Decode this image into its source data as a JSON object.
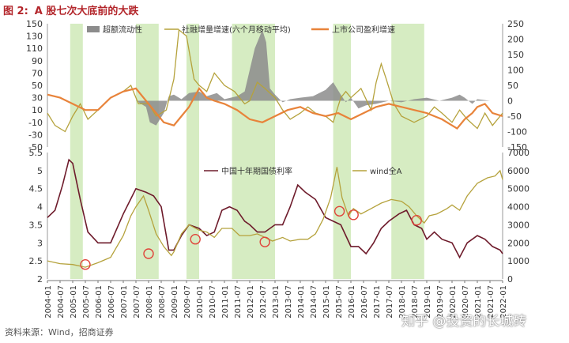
{
  "page": {
    "title_num": "图 2:",
    "title_text": "A 股七次大底前的大跌",
    "source": "资料来源：Wind，招商证券",
    "watermark": "知乎 @投资的长城砖"
  },
  "colors": {
    "excess_liquidity": "#8c8c8c",
    "social_financing": "#b5a23c",
    "profit_growth": "#e8833a",
    "bond_yield": "#6e1b2b",
    "wind_a": "#b5a23c",
    "band": "#d6ecc2",
    "circle": "#e0443a"
  },
  "chart_data": [
    {
      "type": "line",
      "panel": "top",
      "series": [
        {
          "name": "超额流动性",
          "kind": "area",
          "axis": "right",
          "x": [
            2004.0,
            2005.0,
            2006.0,
            2007.5,
            2007.9,
            2008.05,
            2008.3,
            2008.6,
            2008.8,
            2009.0,
            2009.3,
            2009.6,
            2010.0,
            2010.3,
            2010.7,
            2011.0,
            2011.5,
            2011.8,
            2012.0,
            2012.2,
            2012.5,
            2012.65,
            2012.8,
            2013.0,
            2013.3,
            2013.6,
            2014.0,
            2014.5,
            2015.0,
            2015.3,
            2015.6,
            2015.8,
            2016.0,
            2016.3,
            2016.6,
            2017.0,
            2017.5,
            2018.0,
            2018.5,
            2019.0,
            2019.5,
            2020.0,
            2020.3,
            2020.5,
            2020.8,
            2021.0,
            2021.5,
            2022.0
          ],
          "y": [
            0,
            0,
            0,
            0,
            -20,
            -70,
            -80,
            -40,
            15,
            20,
            5,
            25,
            30,
            15,
            25,
            5,
            15,
            30,
            100,
            170,
            230,
            190,
            40,
            20,
            -5,
            5,
            10,
            15,
            35,
            60,
            20,
            -5,
            10,
            -25,
            -15,
            -10,
            0,
            -5,
            5,
            10,
            0,
            10,
            20,
            10,
            -10,
            5,
            0,
            0
          ]
        },
        {
          "name": "社融增量增速(六个月移动平均)",
          "kind": "line",
          "axis": "left",
          "x": [
            2004.0,
            2004.3,
            2004.7,
            2005.0,
            2005.3,
            2005.6,
            2006.0,
            2006.5,
            2007.0,
            2007.3,
            2007.6,
            2008.0,
            2008.3,
            2008.7,
            2009.0,
            2009.2,
            2009.5,
            2009.8,
            2010.0,
            2010.3,
            2010.6,
            2011.0,
            2011.4,
            2011.8,
            2012.0,
            2012.3,
            2012.6,
            2013.0,
            2013.3,
            2013.6,
            2014.0,
            2014.3,
            2014.6,
            2015.0,
            2015.3,
            2015.6,
            2015.8,
            2016.0,
            2016.4,
            2016.8,
            2017.0,
            2017.2,
            2017.4,
            2017.7,
            2018.0,
            2018.5,
            2019.0,
            2019.3,
            2019.6,
            2020.0,
            2020.3,
            2020.6,
            2021.0,
            2021.3,
            2021.6,
            2022.0
          ],
          "y": [
            5,
            -15,
            -25,
            0,
            20,
            -5,
            10,
            30,
            40,
            50,
            20,
            20,
            0,
            10,
            60,
            140,
            130,
            60,
            50,
            40,
            70,
            50,
            40,
            20,
            25,
            55,
            45,
            30,
            10,
            -5,
            5,
            15,
            5,
            0,
            -10,
            30,
            40,
            30,
            45,
            10,
            55,
            85,
            60,
            20,
            0,
            -10,
            0,
            15,
            5,
            -10,
            10,
            -5,
            -20,
            5,
            -15,
            5
          ]
        },
        {
          "name": "上市公司盈利增速",
          "kind": "line",
          "axis": "left",
          "x": [
            2004.0,
            2004.5,
            2005.0,
            2005.5,
            2006.0,
            2006.5,
            2007.0,
            2007.5,
            2008.0,
            2008.3,
            2008.6,
            2009.0,
            2009.3,
            2009.6,
            2010.0,
            2010.3,
            2010.6,
            2011.0,
            2011.5,
            2012.0,
            2012.5,
            2013.0,
            2013.5,
            2014.0,
            2014.5,
            2015.0,
            2015.5,
            2016.0,
            2016.5,
            2017.0,
            2017.5,
            2018.0,
            2018.5,
            2019.0,
            2019.3,
            2019.6,
            2020.0,
            2020.2,
            2020.5,
            2020.8,
            2021.0,
            2021.3,
            2021.6,
            2022.0
          ],
          "y": [
            35,
            30,
            20,
            10,
            10,
            30,
            40,
            45,
            20,
            5,
            -10,
            -15,
            0,
            15,
            45,
            30,
            25,
            20,
            10,
            -5,
            -10,
            0,
            10,
            15,
            5,
            0,
            5,
            -5,
            5,
            15,
            20,
            15,
            10,
            5,
            0,
            -5,
            -15,
            -20,
            -5,
            5,
            15,
            20,
            5,
            0
          ]
        }
      ],
      "left_axis": {
        "ylim": [
          -50,
          150
        ],
        "ticks": [
          -50,
          -30,
          -10,
          10,
          30,
          50,
          70,
          90,
          110,
          130,
          150
        ]
      },
      "right_axis": {
        "ylim": [
          -150,
          250
        ],
        "ticks": [
          -150,
          -100,
          -50,
          0,
          50,
          100,
          150,
          200,
          250
        ]
      },
      "legend_placement": "top"
    },
    {
      "type": "line",
      "panel": "bottom",
      "series": [
        {
          "name": "中国十年期国债利率",
          "axis": "left",
          "x": [
            2004.0,
            2004.3,
            2004.6,
            2004.85,
            2005.0,
            2005.3,
            2005.6,
            2006.0,
            2006.5,
            2007.0,
            2007.5,
            2007.9,
            2008.2,
            2008.5,
            2008.8,
            2009.0,
            2009.3,
            2009.6,
            2010.0,
            2010.3,
            2010.6,
            2010.9,
            2011.2,
            2011.5,
            2011.8,
            2012.0,
            2012.3,
            2012.6,
            2013.0,
            2013.3,
            2013.6,
            2013.9,
            2014.2,
            2014.6,
            2015.0,
            2015.3,
            2015.6,
            2016.0,
            2016.3,
            2016.6,
            2016.9,
            2017.2,
            2017.5,
            2017.9,
            2018.2,
            2018.5,
            2018.8,
            2019.0,
            2019.3,
            2019.6,
            2020.0,
            2020.3,
            2020.6,
            2021.0,
            2021.3,
            2021.6,
            2021.9,
            2022.0
          ],
          "y": [
            3.7,
            3.9,
            4.6,
            5.3,
            5.2,
            4.2,
            3.3,
            3.0,
            3.0,
            3.8,
            4.5,
            4.4,
            4.3,
            4.0,
            2.8,
            2.8,
            3.2,
            3.5,
            3.4,
            3.2,
            3.3,
            3.9,
            4.0,
            3.9,
            3.6,
            3.5,
            3.3,
            3.3,
            3.5,
            3.5,
            4.0,
            4.6,
            4.4,
            4.2,
            3.7,
            3.6,
            3.5,
            2.9,
            2.9,
            2.7,
            3.0,
            3.4,
            3.6,
            3.8,
            3.9,
            3.5,
            3.4,
            3.1,
            3.3,
            3.1,
            3.0,
            2.6,
            3.0,
            3.2,
            3.1,
            2.9,
            2.8,
            2.7
          ]
        },
        {
          "name": "wind全A",
          "axis": "right",
          "x": [
            2004.0,
            2004.5,
            2005.0,
            2005.5,
            2006.0,
            2006.5,
            2007.0,
            2007.3,
            2007.5,
            2007.8,
            2008.0,
            2008.3,
            2008.6,
            2008.9,
            2009.0,
            2009.3,
            2009.6,
            2010.0,
            2010.3,
            2010.6,
            2010.9,
            2011.3,
            2011.6,
            2012.0,
            2012.3,
            2012.6,
            2012.9,
            2013.3,
            2013.6,
            2014.0,
            2014.3,
            2014.6,
            2014.9,
            2015.2,
            2015.45,
            2015.65,
            2015.9,
            2016.1,
            2016.4,
            2016.8,
            2017.2,
            2017.6,
            2018.0,
            2018.3,
            2018.6,
            2018.9,
            2019.1,
            2019.4,
            2019.8,
            2020.0,
            2020.3,
            2020.6,
            2021.0,
            2021.4,
            2021.7,
            2021.9,
            2022.0
          ],
          "y": [
            1000,
            850,
            800,
            650,
            900,
            1200,
            2400,
            3500,
            4000,
            4600,
            3800,
            2500,
            1800,
            1300,
            1500,
            2500,
            3000,
            2700,
            2600,
            2300,
            2800,
            2800,
            2400,
            2400,
            2500,
            2300,
            2100,
            2300,
            2100,
            2200,
            2200,
            2500,
            3300,
            4500,
            6200,
            4500,
            3500,
            3900,
            3600,
            3900,
            4200,
            4400,
            4300,
            4000,
            3500,
            3100,
            3500,
            3600,
            3900,
            4100,
            3800,
            4600,
            5300,
            5600,
            5700,
            6000,
            5500
          ]
        }
      ],
      "left_axis": {
        "ylim": [
          2.0,
          5.5
        ],
        "ticks": [
          2.0,
          2.5,
          3.0,
          3.5,
          4.0,
          4.5,
          5.0,
          5.5
        ]
      },
      "right_axis": {
        "ylim": [
          0,
          7000
        ],
        "ticks": [
          0,
          1000,
          2000,
          3000,
          4000,
          5000,
          6000,
          7000
        ]
      },
      "legend_placement": "top"
    }
  ],
  "shared": {
    "x_ticks": [
      "2004-01",
      "2004-07",
      "2005-01",
      "2005-07",
      "2006-01",
      "2006-07",
      "2007-01",
      "2007-07",
      "2008-01",
      "2008-07",
      "2009-01",
      "2009-07",
      "2010-01",
      "2010-07",
      "2011-01",
      "2011-07",
      "2012-01",
      "2012-07",
      "2013-01",
      "2013-07",
      "2014-01",
      "2014-07",
      "2015-01",
      "2015-07",
      "2016-01",
      "2016-07",
      "2017-01",
      "2017-07",
      "2018-01",
      "2018-07",
      "2019-01",
      "2019-07",
      "2020-01",
      "2020-07",
      "2021-01",
      "2021-07",
      "2022-01"
    ],
    "x_range": [
      2004.0,
      2022.0
    ],
    "bands": [
      [
        2004.9,
        2005.4
      ],
      [
        2007.5,
        2008.4
      ],
      [
        2009.5,
        2010.0
      ],
      [
        2011.3,
        2013.0
      ],
      [
        2015.3,
        2016.0
      ],
      [
        2017.6,
        2018.9
      ]
    ],
    "circles": [
      {
        "x": 2005.5,
        "y": 800
      },
      {
        "x": 2008.0,
        "y": 1400
      },
      {
        "x": 2009.85,
        "y": 2200
      },
      {
        "x": 2012.6,
        "y": 2050
      },
      {
        "x": 2015.55,
        "y": 3750
      },
      {
        "x": 2016.1,
        "y": 3550
      },
      {
        "x": 2018.6,
        "y": 3250
      }
    ]
  }
}
